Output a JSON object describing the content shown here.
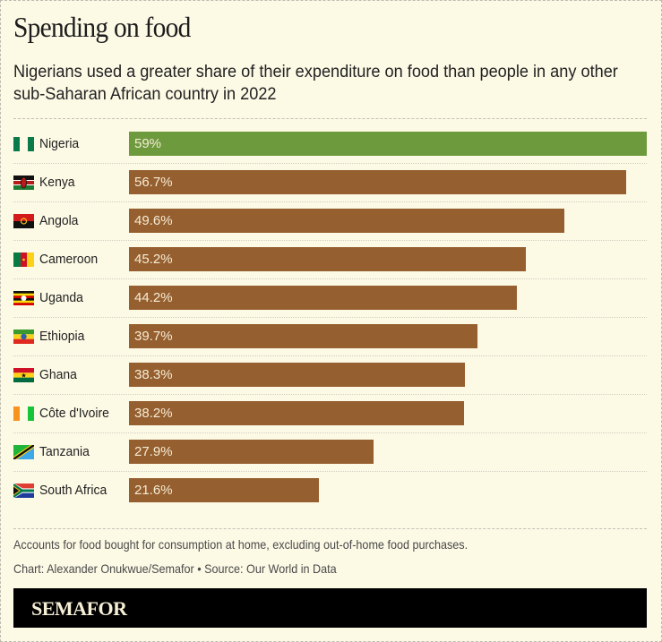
{
  "title": "Spending on food",
  "subtitle": "Nigerians used a greater share of their expenditure on food than people in any other sub-Saharan African country in 2022",
  "chart_data": {
    "type": "bar",
    "orientation": "horizontal",
    "title": "Spending on food",
    "subtitle": "Nigerians used a greater share of their expenditure on food than people in any other sub-Saharan African country in 2022",
    "xlabel": "",
    "ylabel": "",
    "unit": "%",
    "categories": [
      "Nigeria",
      "Kenya",
      "Angola",
      "Cameroon",
      "Uganda",
      "Ethiopia",
      "Ghana",
      "Côte d'Ivoire",
      "Tanzania",
      "South Africa"
    ],
    "values": [
      59,
      56.7,
      49.6,
      45.2,
      44.2,
      39.7,
      38.3,
      38.2,
      27.9,
      21.6
    ],
    "labels": [
      "59%",
      "56.7%",
      "49.6%",
      "45.2%",
      "44.2%",
      "39.7%",
      "38.3%",
      "38.2%",
      "27.9%",
      "21.6%"
    ],
    "flags": [
      "nigeria-flag-icon",
      "kenya-flag-icon",
      "angola-flag-icon",
      "cameroon-flag-icon",
      "uganda-flag-icon",
      "ethiopia-flag-icon",
      "ghana-flag-icon",
      "cote-divoire-flag-icon",
      "tanzania-flag-icon",
      "south-africa-flag-icon"
    ],
    "highlight": "Nigeria",
    "xlim": [
      0,
      59
    ],
    "grid": false,
    "colors": {
      "highlight": "#6e9a3e",
      "default": "#955f2f"
    }
  },
  "footer": {
    "note": "Accounts for food bought for consumption at home, excluding out-of-home food purchases.",
    "credit": "Chart: Alexander Onukwue/Semafor • Source: Our World in Data",
    "brand": "SEMAFOR"
  }
}
